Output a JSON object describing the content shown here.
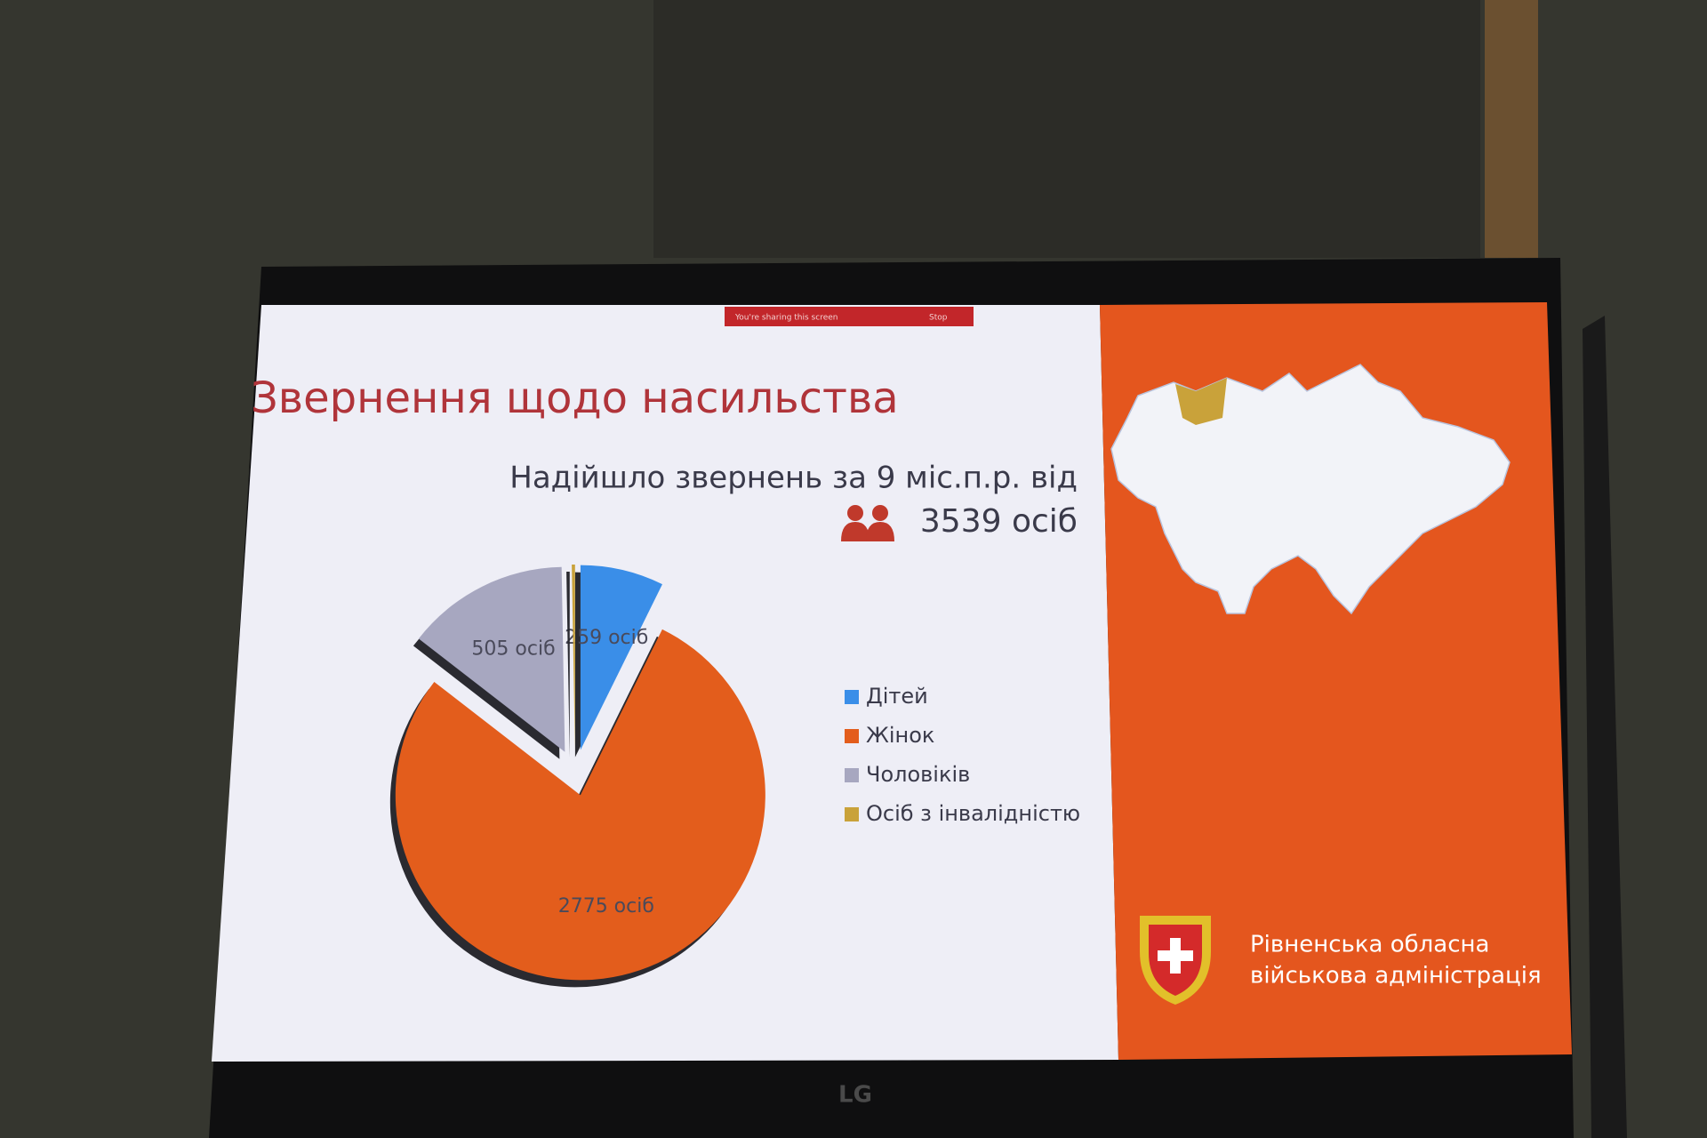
{
  "chart_data": {
    "type": "pie",
    "title": "Звернення щодо насильства",
    "subtitle": "Надійшло звернень за 9 міс.п.р. від",
    "categories": [
      "Дітей",
      "Жінок",
      "Чоловіків",
      "Осіб з інвалідністю"
    ],
    "values": [
      259,
      2775,
      505,
      10
    ],
    "value_labels": [
      "259 осіб",
      "2775 осіб",
      "505 осіб",
      null
    ],
    "colors": [
      "#3a8ee8",
      "#e35d1c",
      "#a7a7c0",
      "#c9a23a"
    ],
    "legend": "right"
  },
  "total_label": "3539 осіб",
  "organization": [
    "Рівненська обласна",
    "військова адміністрація"
  ],
  "screen_share": {
    "notice": "You're sharing this screen",
    "stop": "Stop"
  },
  "brand": "LG"
}
